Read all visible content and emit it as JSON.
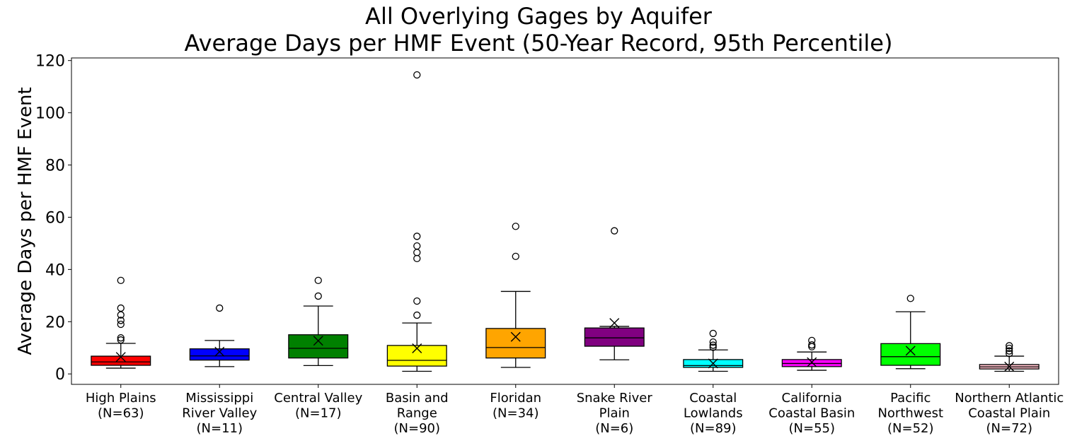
{
  "chart_data": {
    "type": "box",
    "title": "All Overlying Gages by Aquifer",
    "subtitle": "Average Days per HMF Event (50-Year Record, 95th Percentile)",
    "ylabel": "Average Days per HMF Event",
    "xlabel": "",
    "ylim": [
      -4,
      121
    ],
    "yticks": [
      0,
      20,
      40,
      60,
      80,
      100,
      120
    ],
    "grid": false,
    "mean_marker": "x",
    "outlier_marker": "open-circle",
    "boxes": [
      {
        "label": [
          "High Plains",
          "(N=63)"
        ],
        "color": "#ff0000",
        "whisker_low": 2.2,
        "q1": 3.3,
        "median": 4.6,
        "q3": 6.8,
        "whisker_high": 11.7,
        "mean": 6.5,
        "outliers": [
          13.0,
          13.8,
          19.0,
          20.5,
          22.6,
          25.2,
          35.8
        ]
      },
      {
        "label": [
          "Mississippi",
          "River Valley",
          "(N=11)"
        ],
        "color": "#0000ff",
        "whisker_low": 2.8,
        "q1": 5.3,
        "median": 6.9,
        "q3": 9.6,
        "whisker_high": 12.8,
        "mean": 8.5,
        "outliers": [
          25.2
        ]
      },
      {
        "label": [
          "Central Valley",
          "(N=17)"
        ],
        "color": "#008000",
        "whisker_low": 3.2,
        "q1": 6.1,
        "median": 9.8,
        "q3": 15.0,
        "whisker_high": 26.0,
        "mean": 12.7,
        "outliers": [
          29.8,
          35.8
        ]
      },
      {
        "label": [
          "Basin and",
          "Range",
          "(N=90)"
        ],
        "color": "#ffff00",
        "whisker_low": 1.0,
        "q1": 3.0,
        "median": 5.2,
        "q3": 10.9,
        "whisker_high": 19.5,
        "mean": 9.8,
        "outliers": [
          22.5,
          27.9,
          44.2,
          46.5,
          49.0,
          52.7,
          114.5
        ]
      },
      {
        "label": [
          "Floridan",
          "(N=34)"
        ],
        "color": "#ffa500",
        "whisker_low": 2.5,
        "q1": 6.1,
        "median": 10.1,
        "q3": 17.4,
        "whisker_high": 31.6,
        "mean": 14.2,
        "outliers": [
          45.0,
          56.5
        ]
      },
      {
        "label": [
          "Snake River",
          "Plain",
          "(N=6)"
        ],
        "color": "#800080",
        "whisker_low": 5.4,
        "q1": 10.6,
        "median": 13.8,
        "q3": 17.6,
        "whisker_high": 18.2,
        "mean": 19.5,
        "outliers": [
          54.8
        ]
      },
      {
        "label": [
          "Coastal",
          "Lowlands",
          "(N=89)"
        ],
        "color": "#00ffff",
        "whisker_low": 1.0,
        "q1": 2.5,
        "median": 3.2,
        "q3": 5.5,
        "whisker_high": 9.2,
        "mean": 4.0,
        "outliers": [
          10.2,
          11.0,
          12.2,
          15.5
        ]
      },
      {
        "label": [
          "California",
          "Coastal Basin",
          "(N=55)"
        ],
        "color": "#ff00ff",
        "whisker_low": 1.4,
        "q1": 2.8,
        "median": 4.0,
        "q3": 5.5,
        "whisker_high": 8.4,
        "mean": 4.5,
        "outliers": [
          10.4,
          11.1,
          12.8
        ]
      },
      {
        "label": [
          "Pacific",
          "Northwest",
          "(N=52)"
        ],
        "color": "#00ff00",
        "whisker_low": 2.0,
        "q1": 3.3,
        "median": 6.6,
        "q3": 11.6,
        "whisker_high": 23.8,
        "mean": 8.9,
        "outliers": [
          28.9
        ]
      },
      {
        "label": [
          "Northern Atlantic",
          "Coastal Plain",
          "(N=72)"
        ],
        "color": "#ffc0cb",
        "whisker_low": 1.0,
        "q1": 1.9,
        "median": 2.7,
        "q3": 3.6,
        "whisker_high": 6.8,
        "mean": 2.8,
        "outliers": [
          7.8,
          8.8,
          9.8,
          10.8
        ]
      }
    ]
  }
}
